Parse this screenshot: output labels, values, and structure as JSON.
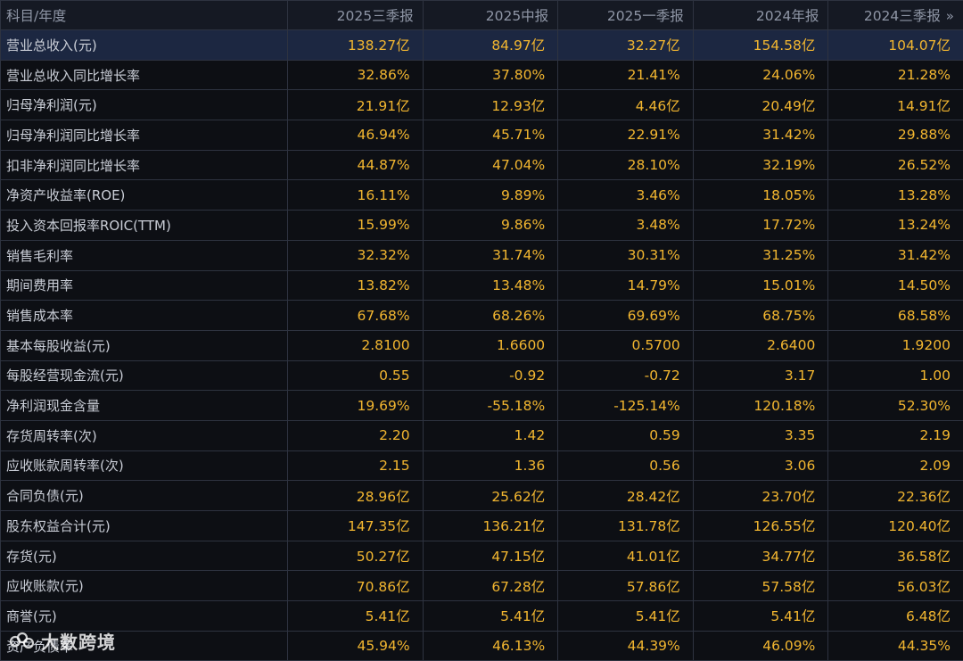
{
  "table": {
    "header": {
      "label": "科目/年度",
      "periods": [
        "2025三季报",
        "2025中报",
        "2025一季报",
        "2024年报",
        "2024三季报"
      ],
      "more_icon": "double-chevron-right-icon"
    },
    "rows": [
      {
        "label": "营业总收入(元)",
        "values": [
          "138.27亿",
          "84.97亿",
          "32.27亿",
          "154.58亿",
          "104.07亿"
        ]
      },
      {
        "label": "营业总收入同比增长率",
        "values": [
          "32.86%",
          "37.80%",
          "21.41%",
          "24.06%",
          "21.28%"
        ]
      },
      {
        "label": "归母净利润(元)",
        "values": [
          "21.91亿",
          "12.93亿",
          "4.46亿",
          "20.49亿",
          "14.91亿"
        ]
      },
      {
        "label": "归母净利润同比增长率",
        "values": [
          "46.94%",
          "45.71%",
          "22.91%",
          "31.42%",
          "29.88%"
        ]
      },
      {
        "label": "扣非净利润同比增长率",
        "values": [
          "44.87%",
          "47.04%",
          "28.10%",
          "32.19%",
          "26.52%"
        ]
      },
      {
        "label": "净资产收益率(ROE)",
        "values": [
          "16.11%",
          "9.89%",
          "3.46%",
          "18.05%",
          "13.28%"
        ]
      },
      {
        "label": "投入资本回报率ROIC(TTM)",
        "values": [
          "15.99%",
          "9.86%",
          "3.48%",
          "17.72%",
          "13.24%"
        ]
      },
      {
        "label": "销售毛利率",
        "values": [
          "32.32%",
          "31.74%",
          "30.31%",
          "31.25%",
          "31.42%"
        ]
      },
      {
        "label": "期间费用率",
        "values": [
          "13.82%",
          "13.48%",
          "14.79%",
          "15.01%",
          "14.50%"
        ]
      },
      {
        "label": "销售成本率",
        "values": [
          "67.68%",
          "68.26%",
          "69.69%",
          "68.75%",
          "68.58%"
        ]
      },
      {
        "label": "基本每股收益(元)",
        "values": [
          "2.8100",
          "1.6600",
          "0.5700",
          "2.6400",
          "1.9200"
        ]
      },
      {
        "label": "每股经营现金流(元)",
        "values": [
          "0.55",
          "-0.92",
          "-0.72",
          "3.17",
          "1.00"
        ]
      },
      {
        "label": "净利润现金含量",
        "values": [
          "19.69%",
          "-55.18%",
          "-125.14%",
          "120.18%",
          "52.30%"
        ]
      },
      {
        "label": "存货周转率(次)",
        "values": [
          "2.20",
          "1.42",
          "0.59",
          "3.35",
          "2.19"
        ]
      },
      {
        "label": "应收账款周转率(次)",
        "values": [
          "2.15",
          "1.36",
          "0.56",
          "3.06",
          "2.09"
        ]
      },
      {
        "label": "合同负债(元)",
        "values": [
          "28.96亿",
          "25.62亿",
          "28.42亿",
          "23.70亿",
          "22.36亿"
        ]
      },
      {
        "label": "股东权益合计(元)",
        "values": [
          "147.35亿",
          "136.21亿",
          "131.78亿",
          "126.55亿",
          "120.40亿"
        ]
      },
      {
        "label": "存货(元)",
        "values": [
          "50.27亿",
          "47.15亿",
          "41.01亿",
          "34.77亿",
          "36.58亿"
        ]
      },
      {
        "label": "应收账款(元)",
        "values": [
          "70.86亿",
          "67.28亿",
          "57.86亿",
          "57.58亿",
          "56.03亿"
        ]
      },
      {
        "label": "商誉(元)",
        "values": [
          "5.41亿",
          "5.41亿",
          "5.41亿",
          "5.41亿",
          "6.48亿"
        ]
      },
      {
        "label": "资产负债率",
        "values": [
          "45.94%",
          "46.13%",
          "44.39%",
          "46.09%",
          "44.35%"
        ]
      }
    ]
  },
  "watermark": {
    "text": "大数跨境",
    "logo_icon": "watermark-logo-icon"
  },
  "colors": {
    "background": "#0d0f14",
    "header_bg": "#151923",
    "highlight_row_bg": "#1c2741",
    "grid_line": "#2e3340",
    "label_text": "#c9cdd6",
    "value_text": "#f2b630",
    "header_text": "#8f96a6"
  }
}
